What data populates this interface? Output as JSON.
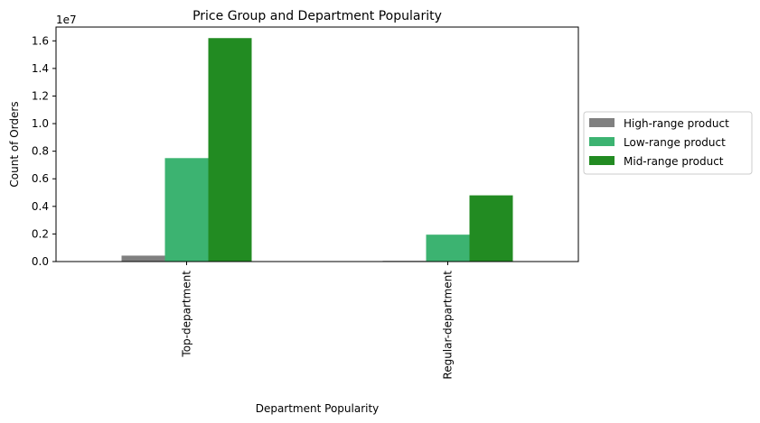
{
  "chart_data": {
    "type": "bar",
    "title": "Price Group and Department Popularity",
    "xlabel": "Department Popularity",
    "ylabel": "Count of Orders",
    "y_offset_label": "1e7",
    "categories": [
      "Top-department",
      "Regular-department"
    ],
    "series": [
      {
        "name": "High-range product",
        "color": "#808080",
        "values": [
          430000,
          50000
        ]
      },
      {
        "name": "Low-range product",
        "color": "#3cb371",
        "values": [
          7500000,
          1950000
        ]
      },
      {
        "name": "Mid-range product",
        "color": "#228b22",
        "values": [
          16200000,
          4800000
        ]
      }
    ],
    "ylim": [
      0,
      17000000
    ],
    "y_ticks": [
      0,
      2000000,
      4000000,
      6000000,
      8000000,
      10000000,
      12000000,
      14000000,
      16000000
    ],
    "y_tick_labels": [
      "0.0",
      "0.2",
      "0.4",
      "0.6",
      "0.8",
      "1.0",
      "1.2",
      "1.4",
      "1.6"
    ],
    "grid": false,
    "legend_position": "outside-right"
  }
}
